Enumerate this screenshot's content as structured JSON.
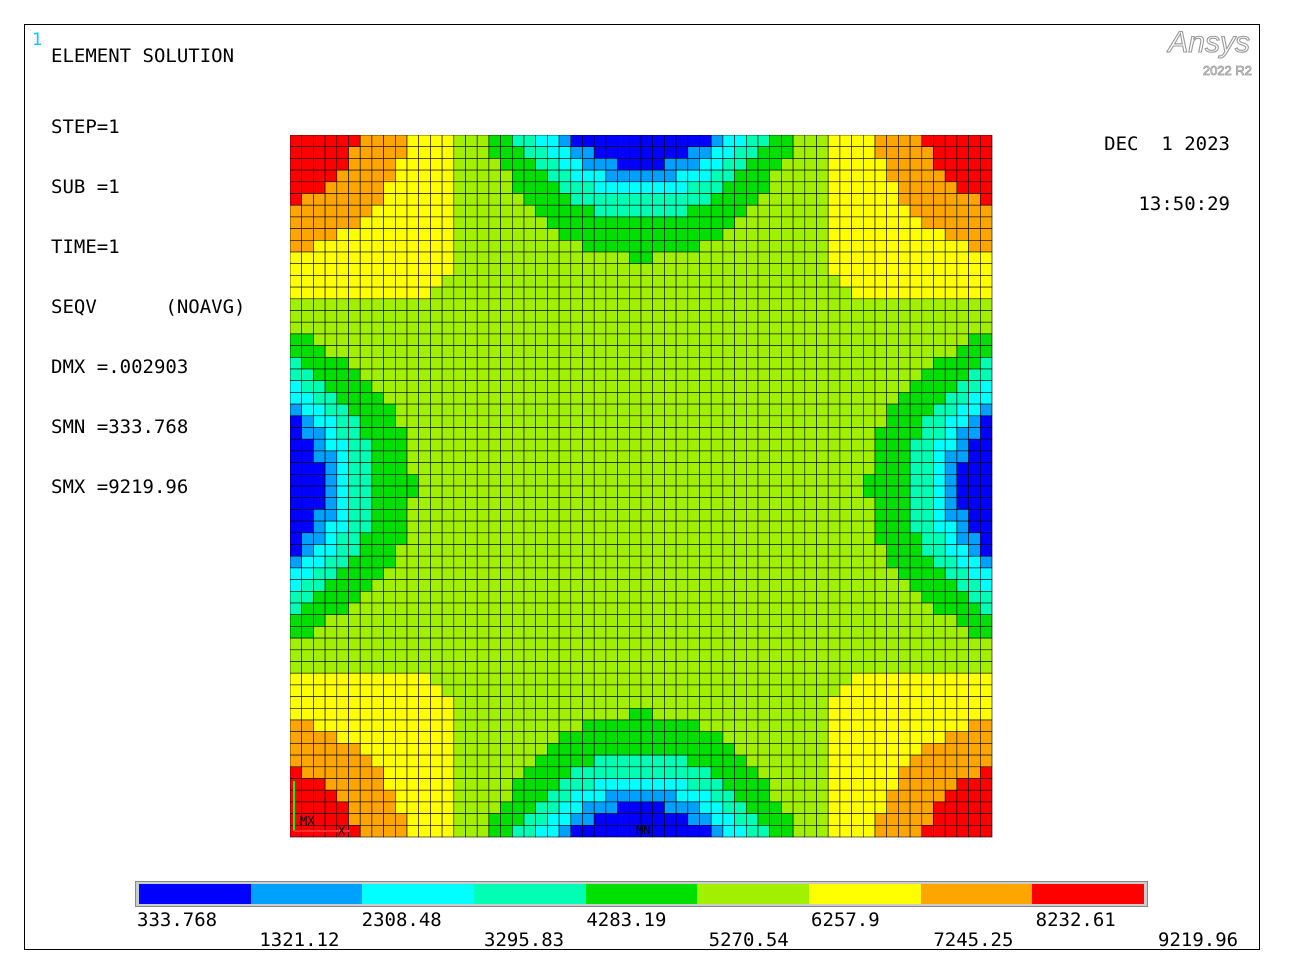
{
  "window_number": "1",
  "title": "ELEMENT SOLUTION",
  "info_lines": [
    "STEP=1",
    "SUB =1",
    "TIME=1",
    "SEQV      (NOAVG)",
    "DMX =.002903",
    "SMN =333.768",
    "SMX =9219.96"
  ],
  "date": "DEC  1 2023",
  "time": "13:50:29",
  "logo": {
    "brand": "Ansys",
    "version": "2022 R2"
  },
  "triad": {
    "labels": [
      "MX",
      "X",
      "MN"
    ]
  },
  "legend": {
    "colors": [
      "#0000ff",
      "#00a0ff",
      "#00ffff",
      "#00ffb4",
      "#00e000",
      "#a0f000",
      "#ffff00",
      "#ffa500",
      "#ff0000"
    ],
    "top_labels": [
      "333.768",
      "2308.48",
      "4283.19",
      "6257.9",
      "8232.61"
    ],
    "bottom_labels": [
      "1321.12",
      "3295.83",
      "5270.54",
      "7245.25",
      "9219.96"
    ]
  },
  "contour": {
    "type": "heatmap",
    "grid": [
      60,
      60
    ],
    "field": "SEQV",
    "min": 333.768,
    "max": 9219.96,
    "min_locations": [
      "left-middle",
      "right-middle",
      "top-middle",
      "bottom-middle"
    ],
    "max_locations": [
      "top-left corner",
      "top-right corner",
      "bottom-left corner",
      "bottom-right corner"
    ],
    "center_level": 6257.9
  }
}
